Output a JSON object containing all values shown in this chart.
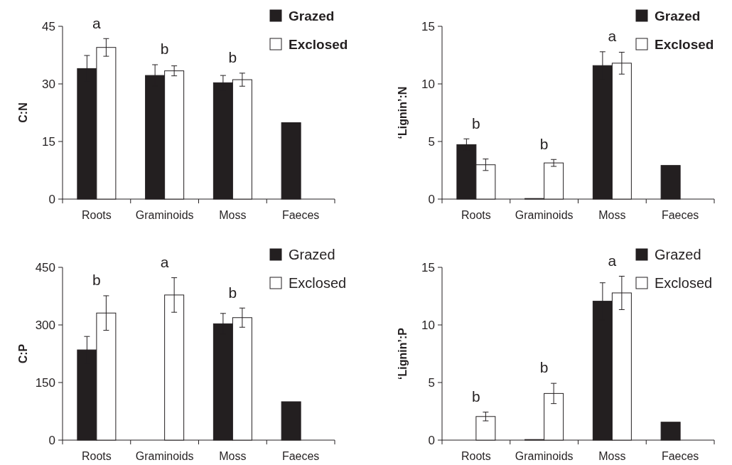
{
  "chart_data": [
    {
      "type": "bar",
      "ylabel": "C:N",
      "categories": [
        "Roots",
        "Graminoids",
        "Moss",
        "Faeces"
      ],
      "ylim": [
        0,
        45
      ],
      "yticks": [
        0,
        15,
        30,
        45
      ],
      "legend": "top right",
      "series": [
        {
          "name": "Grazed",
          "color": "#231f20",
          "values": [
            34.0,
            32.2,
            30.3,
            19.9
          ],
          "errors": [
            3.4,
            2.8,
            1.9,
            null
          ]
        },
        {
          "name": "Exclosed",
          "color": "#ffffff",
          "values": [
            39.5,
            33.4,
            31.1,
            null
          ],
          "errors": [
            2.3,
            1.3,
            1.7,
            null
          ]
        }
      ],
      "annotations": [
        "a",
        "b",
        "b"
      ]
    },
    {
      "type": "bar",
      "ylabel": "‘Lignin’:N",
      "categories": [
        "Roots",
        "Graminoids",
        "Moss",
        "Faeces"
      ],
      "ylim": [
        0,
        15
      ],
      "yticks": [
        0,
        5,
        10,
        15
      ],
      "legend": "top right",
      "series": [
        {
          "name": "Grazed",
          "color": "#231f20",
          "values": [
            4.73,
            0.05,
            11.59,
            2.92
          ],
          "errors": [
            0.5,
            null,
            1.2,
            null
          ]
        },
        {
          "name": "Exclosed",
          "color": "#ffffff",
          "values": [
            2.98,
            3.14,
            11.8,
            null
          ],
          "errors": [
            0.5,
            0.3,
            0.95,
            null
          ]
        }
      ],
      "annotations": [
        "b",
        "b",
        "a"
      ]
    },
    {
      "type": "bar",
      "ylabel": "C:P",
      "categories": [
        "Roots",
        "Graminoids",
        "Moss",
        "Faeces"
      ],
      "ylim": [
        0,
        450
      ],
      "yticks": [
        0,
        150,
        300,
        450
      ],
      "legend": "top right",
      "series": [
        {
          "name": "Grazed",
          "color": "#231f20",
          "values": [
            235,
            null,
            303,
            100
          ],
          "errors": [
            35,
            null,
            27,
            null
          ]
        },
        {
          "name": "Exclosed",
          "color": "#ffffff",
          "values": [
            331,
            378,
            319,
            null
          ],
          "errors": [
            45,
            45,
            25,
            null
          ]
        }
      ],
      "annotations": [
        "b",
        "a",
        "b"
      ]
    },
    {
      "type": "bar",
      "ylabel": "‘Lignin’:P",
      "categories": [
        "Roots",
        "Graminoids",
        "Moss",
        "Faeces"
      ],
      "ylim": [
        0,
        15
      ],
      "yticks": [
        0,
        5,
        10,
        15
      ],
      "legend": "top right",
      "series": [
        {
          "name": "Grazed",
          "color": "#231f20",
          "values": [
            null,
            0.05,
            12.06,
            1.56
          ],
          "errors": [
            null,
            null,
            1.6,
            null
          ]
        },
        {
          "name": "Exclosed",
          "color": "#ffffff",
          "values": [
            2.05,
            4.05,
            12.78,
            null
          ],
          "errors": [
            0.38,
            0.88,
            1.45,
            null
          ]
        }
      ],
      "annotations": [
        "b",
        "b",
        "a"
      ]
    }
  ]
}
